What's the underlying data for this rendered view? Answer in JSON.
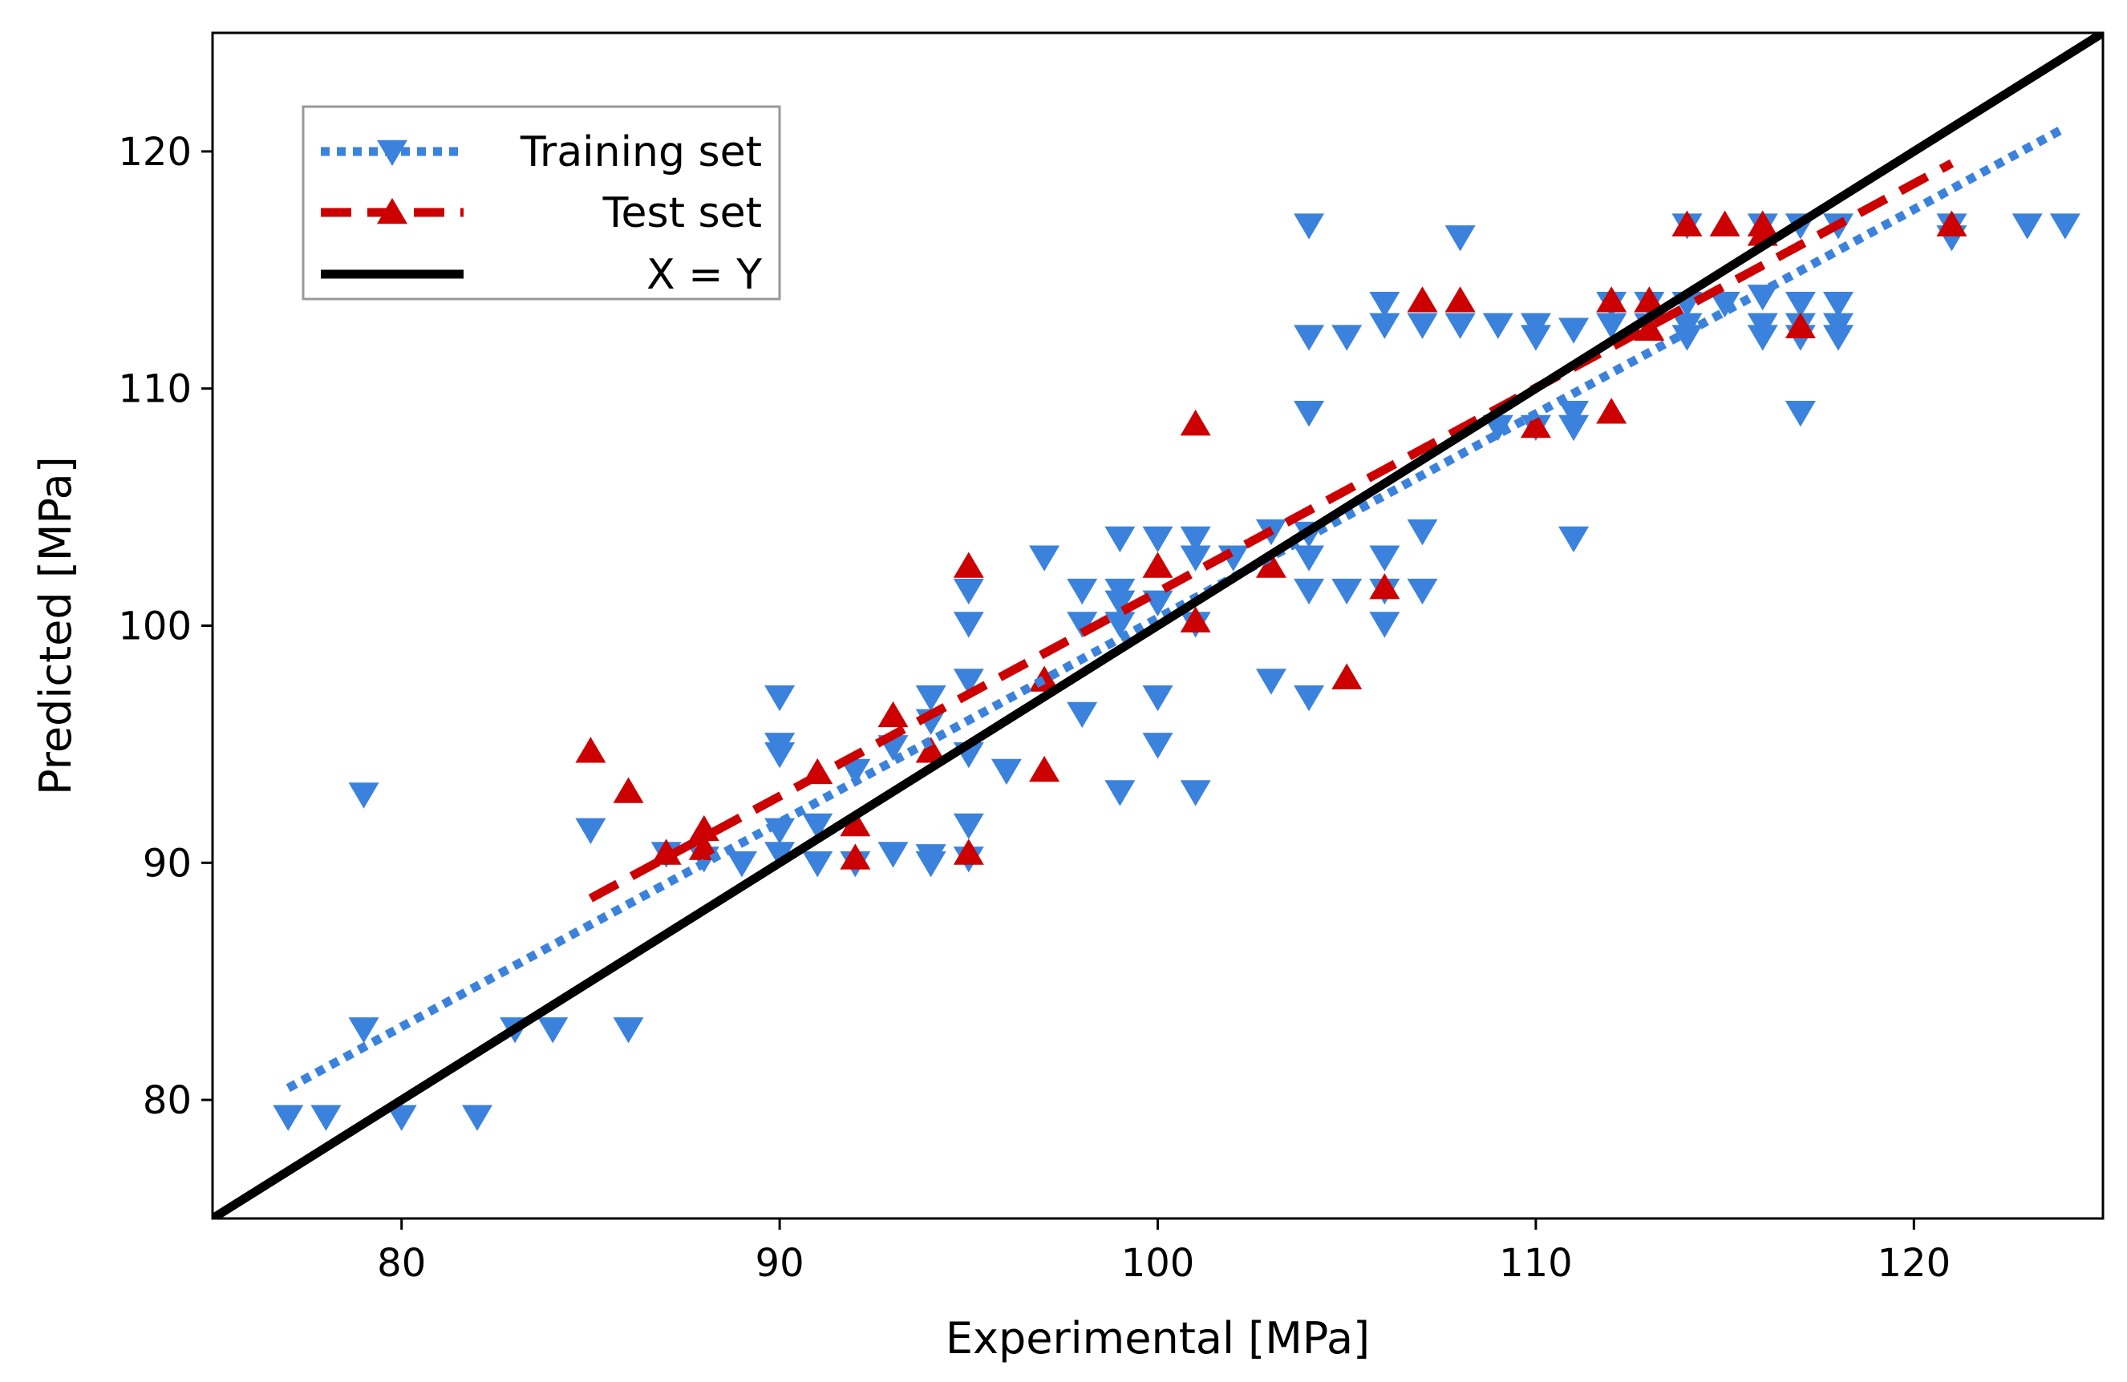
{
  "chart_data": {
    "type": "scatter",
    "xlabel": "Experimental [MPa]",
    "ylabel": "Predicted [MPa]",
    "xlim": [
      75,
      125
    ],
    "ylim": [
      75,
      125
    ],
    "xticks": [
      80,
      90,
      100,
      110,
      120
    ],
    "yticks": [
      80,
      90,
      100,
      110,
      120
    ],
    "x_tick_labels": [
      "80",
      "90",
      "100",
      "110",
      "120"
    ],
    "y_tick_labels": [
      "80",
      "90",
      "100",
      "110",
      "120"
    ],
    "grid": false,
    "legend_position": "top-left",
    "series": [
      {
        "name": "Training set",
        "marker": "triangle-down",
        "color": "#3b82dc",
        "fit_line": {
          "style": "dotted",
          "x": [
            77,
            124
          ],
          "y": [
            80.5,
            121
          ]
        },
        "points": [
          [
            77,
            79.3
          ],
          [
            78,
            79.3
          ],
          [
            80,
            79.3
          ],
          [
            82,
            79.3
          ],
          [
            79,
            83
          ],
          [
            79,
            92.9
          ],
          [
            83,
            83
          ],
          [
            84,
            83
          ],
          [
            86,
            83
          ],
          [
            85,
            91.4
          ],
          [
            87,
            90.4
          ],
          [
            88,
            90.2
          ],
          [
            89,
            90
          ],
          [
            90,
            90.4
          ],
          [
            90,
            91.4
          ],
          [
            90,
            95
          ],
          [
            90,
            94.6
          ],
          [
            90,
            97
          ],
          [
            91,
            90
          ],
          [
            91,
            91.6
          ],
          [
            92,
            90
          ],
          [
            92,
            93.9
          ],
          [
            93,
            90.4
          ],
          [
            93,
            94.9
          ],
          [
            94,
            90.3
          ],
          [
            94,
            90
          ],
          [
            94,
            96
          ],
          [
            94,
            97
          ],
          [
            95,
            90.2
          ],
          [
            95,
            91.6
          ],
          [
            95,
            94.6
          ],
          [
            95,
            97.7
          ],
          [
            95,
            100.1
          ],
          [
            95,
            101.5
          ],
          [
            96,
            93.9
          ],
          [
            97,
            102.9
          ],
          [
            98,
            96.3
          ],
          [
            98,
            100.1
          ],
          [
            98,
            101.5
          ],
          [
            99,
            93
          ],
          [
            99,
            100.1
          ],
          [
            99,
            101
          ],
          [
            99,
            101.5
          ],
          [
            99,
            103.7
          ],
          [
            100,
            95
          ],
          [
            100,
            97
          ],
          [
            100,
            101
          ],
          [
            100,
            103.7
          ],
          [
            101,
            93
          ],
          [
            101,
            100.1
          ],
          [
            101,
            102.9
          ],
          [
            101,
            103.7
          ],
          [
            102,
            102.9
          ],
          [
            103,
            97.7
          ],
          [
            103,
            104
          ],
          [
            104,
            97
          ],
          [
            104,
            101.5
          ],
          [
            104,
            102.9
          ],
          [
            104,
            103.9
          ],
          [
            104,
            109
          ],
          [
            104,
            112.2
          ],
          [
            104,
            116.9
          ],
          [
            105,
            101.5
          ],
          [
            105,
            112.2
          ],
          [
            106,
            100.1
          ],
          [
            106,
            101.5
          ],
          [
            106,
            102.9
          ],
          [
            106,
            112.7
          ],
          [
            106,
            113.6
          ],
          [
            107,
            101.5
          ],
          [
            107,
            104
          ],
          [
            107,
            112.7
          ],
          [
            108,
            112.7
          ],
          [
            108,
            116.4
          ],
          [
            109,
            108.4
          ],
          [
            109,
            112.7
          ],
          [
            110,
            108.4
          ],
          [
            110,
            112.2
          ],
          [
            110,
            112.7
          ],
          [
            111,
            103.7
          ],
          [
            111,
            108.4
          ],
          [
            111,
            109
          ],
          [
            111,
            112.5
          ],
          [
            112,
            112.7
          ],
          [
            112,
            113.6
          ],
          [
            113,
            112.7
          ],
          [
            113,
            113.6
          ],
          [
            114,
            112.2
          ],
          [
            114,
            112.7
          ],
          [
            114,
            113.6
          ],
          [
            114,
            116.9
          ],
          [
            115,
            113.6
          ],
          [
            116,
            112.2
          ],
          [
            116,
            112.7
          ],
          [
            116,
            113.9
          ],
          [
            116,
            116.9
          ],
          [
            117,
            109
          ],
          [
            117,
            112.2
          ],
          [
            117,
            112.7
          ],
          [
            117,
            113.6
          ],
          [
            117,
            116.9
          ],
          [
            118,
            112.2
          ],
          [
            118,
            112.7
          ],
          [
            118,
            113.6
          ],
          [
            118,
            116.9
          ],
          [
            121,
            116.4
          ],
          [
            121,
            116.9
          ],
          [
            123,
            116.9
          ],
          [
            124,
            116.9
          ]
        ]
      },
      {
        "name": "Test set",
        "marker": "triangle-up",
        "color": "#cc0000",
        "fit_line": {
          "style": "dashed",
          "x": [
            85,
            121
          ],
          "y": [
            88.5,
            119.5
          ]
        },
        "points": [
          [
            85,
            94.7
          ],
          [
            86,
            93
          ],
          [
            87,
            90.4
          ],
          [
            88,
            90.6
          ],
          [
            88,
            91.4
          ],
          [
            91,
            93.8
          ],
          [
            92,
            90.2
          ],
          [
            92,
            91.6
          ],
          [
            93,
            96.2
          ],
          [
            94,
            94.7
          ],
          [
            95,
            90.4
          ],
          [
            95,
            102.5
          ],
          [
            97,
            97.7
          ],
          [
            97,
            93.9
          ],
          [
            100,
            102.5
          ],
          [
            101,
            100.2
          ],
          [
            101,
            108.5
          ],
          [
            103,
            102.5
          ],
          [
            105,
            97.8
          ],
          [
            106,
            101.6
          ],
          [
            107,
            113.7
          ],
          [
            108,
            113.7
          ],
          [
            110,
            108.4
          ],
          [
            112,
            109
          ],
          [
            112,
            113.7
          ],
          [
            113,
            112.5
          ],
          [
            113,
            113.7
          ],
          [
            114,
            116.9
          ],
          [
            115,
            116.9
          ],
          [
            116,
            116.5
          ],
          [
            116,
            116.9
          ],
          [
            117,
            112.6
          ],
          [
            121,
            116.9
          ]
        ]
      },
      {
        "name": "X = Y",
        "marker": "none",
        "color": "#000000",
        "line": {
          "style": "solid",
          "x": [
            75,
            125
          ],
          "y": [
            75,
            125
          ]
        }
      }
    ]
  }
}
